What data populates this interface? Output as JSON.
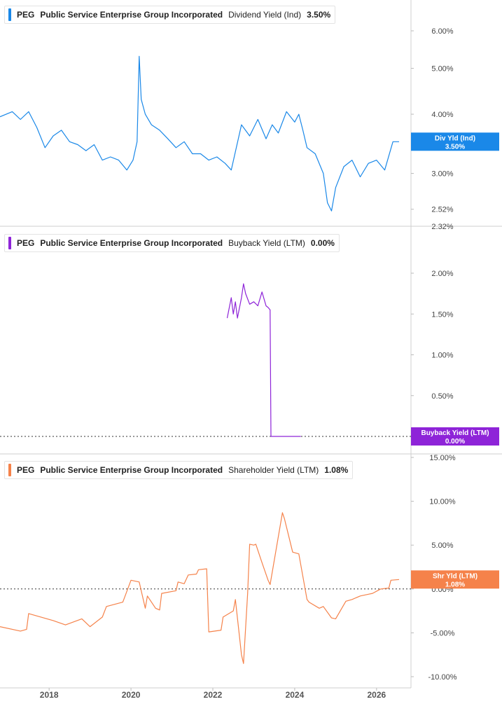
{
  "chart_data": [
    {
      "type": "line",
      "ticker": "PEG",
      "company": "Public Service Enterprise Group Incorporated",
      "metric": "Dividend Yield (Ind)",
      "current_value": "3.50%",
      "badge_label": "Div Yld (Ind)",
      "color": "#1a88e8",
      "yaxis_scale": "log",
      "ylim": [
        2.32,
        7.0
      ],
      "yticks": [
        2.52,
        3.0,
        4.0,
        5.0,
        6.0
      ],
      "ytick_labels": [
        "2.52%",
        "3.00%",
        "4.00%",
        "5.00%",
        "6.00%"
      ],
      "bottom_label": "2.32%",
      "series": [
        {
          "x": [
            2016.8,
            2017.1,
            2017.3,
            2017.5,
            2017.7,
            2017.9,
            2018.1,
            2018.3,
            2018.5,
            2018.7,
            2018.9,
            2019.1,
            2019.3,
            2019.5,
            2019.7,
            2019.9,
            2020.05,
            2020.15,
            2020.2,
            2020.25,
            2020.35,
            2020.5,
            2020.7,
            2020.9,
            2021.1,
            2021.3,
            2021.5,
            2021.7,
            2021.9,
            2022.1,
            2022.3,
            2022.45,
            2022.7,
            2022.9,
            2023.1,
            2023.3,
            2023.45,
            2023.6,
            2023.8,
            2024.0,
            2024.1,
            2024.2,
            2024.3,
            2024.5,
            2024.7,
            2024.8,
            2024.9,
            2025.0,
            2025.2,
            2025.4,
            2025.6,
            2025.8,
            2026.0,
            2026.2,
            2026.4,
            2026.55
          ],
          "y": [
            3.95,
            4.05,
            3.9,
            4.05,
            3.75,
            3.4,
            3.6,
            3.7,
            3.5,
            3.45,
            3.35,
            3.45,
            3.2,
            3.25,
            3.2,
            3.05,
            3.2,
            3.5,
            5.3,
            4.3,
            4.0,
            3.8,
            3.7,
            3.55,
            3.4,
            3.5,
            3.3,
            3.3,
            3.2,
            3.25,
            3.15,
            3.05,
            3.8,
            3.6,
            3.9,
            3.55,
            3.8,
            3.65,
            4.05,
            3.85,
            4.0,
            3.7,
            3.4,
            3.3,
            3.0,
            2.6,
            2.5,
            2.8,
            3.1,
            3.2,
            2.95,
            3.15,
            3.2,
            3.05,
            3.5,
            3.5
          ]
        }
      ]
    },
    {
      "type": "line",
      "ticker": "PEG",
      "company": "Public Service Enterprise Group Incorporated",
      "metric": "Buyback Yield (LTM)",
      "current_value": "0.00%",
      "badge_label": "Buyback Yield (LTM)",
      "color": "#8e24d8",
      "ylim": [
        0.0,
        2.3
      ],
      "yticks": [
        0.5,
        1.0,
        1.5,
        2.0
      ],
      "ytick_labels": [
        "0.50%",
        "1.00%",
        "1.50%",
        "2.00%"
      ],
      "baseline": 0.0,
      "series": [
        {
          "x": [
            2022.35,
            2022.45,
            2022.5,
            2022.55,
            2022.6,
            2022.7,
            2022.75,
            2022.8,
            2022.9,
            2023.0,
            2023.1,
            2023.2,
            2023.3,
            2023.35,
            2023.4,
            2023.42,
            2023.5,
            2024.0,
            2024.15
          ],
          "y": [
            1.45,
            1.7,
            1.5,
            1.65,
            1.45,
            1.7,
            1.87,
            1.75,
            1.62,
            1.65,
            1.6,
            1.77,
            1.6,
            1.58,
            1.55,
            0.0,
            0.0,
            0.0,
            0.0
          ]
        }
      ]
    },
    {
      "type": "line",
      "ticker": "PEG",
      "company": "Public Service Enterprise Group Incorporated",
      "metric": "Shareholder Yield (LTM)",
      "current_value": "1.08%",
      "badge_label": "Shr Yld (LTM)",
      "color": "#f5824a",
      "ylim": [
        -10.5,
        15.5
      ],
      "yticks": [
        -10,
        -5,
        0,
        5,
        10,
        15
      ],
      "ytick_labels": [
        "-10.00%",
        "-5.00%",
        "0.00%",
        "5.00%",
        "10.00%",
        "15.00%"
      ],
      "baseline": 0.0,
      "xticks": [
        2018,
        2020,
        2022,
        2024,
        2026
      ],
      "xtick_labels": [
        "2018",
        "2020",
        "2022",
        "2024",
        "2026"
      ],
      "series": [
        {
          "x": [
            2016.8,
            2017.3,
            2017.45,
            2017.5,
            2018.1,
            2018.4,
            2018.8,
            2019.0,
            2019.3,
            2019.4,
            2019.8,
            2020.0,
            2020.2,
            2020.35,
            2020.4,
            2020.6,
            2020.7,
            2020.75,
            2021.1,
            2021.15,
            2021.3,
            2021.4,
            2021.6,
            2021.65,
            2021.85,
            2021.9,
            2022.2,
            2022.25,
            2022.5,
            2022.55,
            2022.7,
            2022.75,
            2022.85,
            2022.9,
            2023.0,
            2023.05,
            2023.2,
            2023.35,
            2023.4,
            2023.7,
            2023.75,
            2023.95,
            2024.1,
            2024.3,
            2024.35,
            2024.6,
            2024.7,
            2024.9,
            2025.0,
            2025.25,
            2025.4,
            2025.6,
            2025.8,
            2025.9,
            2026.1,
            2026.3,
            2026.35,
            2026.55
          ],
          "y": [
            -4.3,
            -4.8,
            -4.6,
            -2.8,
            -3.6,
            -4.1,
            -3.4,
            -4.3,
            -3.2,
            -2.0,
            -1.5,
            1.0,
            0.8,
            -2.2,
            -0.8,
            -2.2,
            -2.4,
            -0.5,
            -0.2,
            0.8,
            0.6,
            1.6,
            1.7,
            2.2,
            2.3,
            -4.9,
            -4.7,
            -3.2,
            -2.5,
            -1.2,
            -7.5,
            -8.5,
            -0.5,
            5.1,
            5.0,
            5.1,
            3.0,
            1.0,
            0.5,
            8.7,
            8.0,
            4.2,
            4.0,
            -1.2,
            -1.5,
            -2.2,
            -2.0,
            -3.3,
            -3.4,
            -1.4,
            -1.2,
            -0.8,
            -0.6,
            -0.5,
            0.0,
            0.1,
            1.0,
            1.08
          ]
        }
      ]
    }
  ]
}
